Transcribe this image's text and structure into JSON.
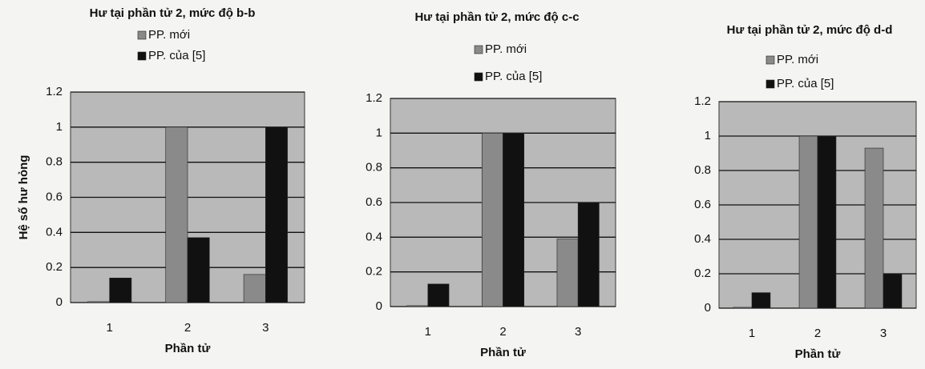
{
  "chart_data": [
    {
      "type": "bar",
      "title": "Hư tại phần tử 2, mức độ b-b",
      "x_label": "Phần tử",
      "y_label": "Hệ số hư hỏng",
      "categories": [
        "1",
        "2",
        "3"
      ],
      "series": [
        {
          "name": "PP. mới",
          "color": "#8a8a8a",
          "values": [
            0.005,
            1,
            0.16
          ]
        },
        {
          "name": "PP. của [5]",
          "color": "#111111",
          "values": [
            0.14,
            0.37,
            1
          ]
        }
      ],
      "ylim": [
        0,
        1.2
      ],
      "yticks": [
        0,
        0.2,
        0.4,
        0.6,
        0.8,
        1,
        1.2
      ],
      "grid": true
    },
    {
      "type": "bar",
      "title": "Hư tại phần tử 2, mức độ c-c",
      "x_label": "Phần tử",
      "categories": [
        "1",
        "2",
        "3"
      ],
      "series": [
        {
          "name": "PP. mới",
          "color": "#8a8a8a",
          "values": [
            0.005,
            1,
            0.39
          ]
        },
        {
          "name": "PP. của [5]",
          "color": "#111111",
          "values": [
            0.13,
            1,
            0.6
          ]
        }
      ],
      "ylim": [
        0,
        1.2
      ],
      "yticks": [
        0,
        0.2,
        0.4,
        0.6,
        0.8,
        1,
        1.2
      ],
      "grid": true
    },
    {
      "type": "bar",
      "title": "Hư tại phần tử 2, mức độ d-d",
      "x_label": "Phần tử",
      "categories": [
        "1",
        "2",
        "3"
      ],
      "series": [
        {
          "name": "PP. mới",
          "color": "#8a8a8a",
          "values": [
            0.005,
            1,
            0.93
          ]
        },
        {
          "name": "PP. của [5]",
          "color": "#111111",
          "values": [
            0.09,
            1,
            0.2
          ]
        }
      ],
      "ylim": [
        0,
        1.2
      ],
      "yticks": [
        0,
        0.2,
        0.4,
        0.6,
        0.8,
        1,
        1.2
      ],
      "grid": true
    }
  ]
}
